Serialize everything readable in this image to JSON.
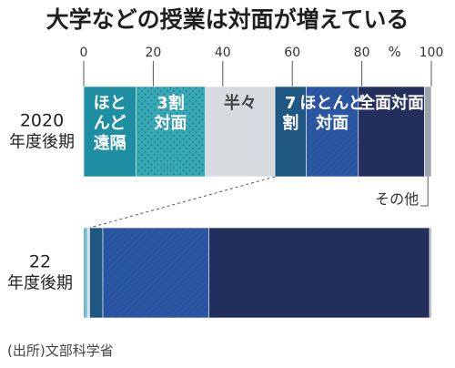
{
  "chart_data": {
    "type": "bar",
    "stacked": true,
    "orientation": "horizontal",
    "title": "大学などの授業は対面が増えている",
    "unit": "%",
    "xlim": [
      0,
      100
    ],
    "xticks": [
      "0",
      "20",
      "40",
      "60",
      "80",
      "100"
    ],
    "categories": [
      [
        "2020",
        "年度後期"
      ],
      [
        "22",
        "年度後期"
      ]
    ],
    "series": [
      {
        "name": "ほとんど遠隔",
        "color": "#1e8ea3",
        "values": [
          15,
          0.5
        ]
      },
      {
        "name": "3割対面",
        "color": "#37a8b5",
        "pattern": "dots",
        "values": [
          20,
          0.5
        ]
      },
      {
        "name": "半々",
        "color": "#d7dadf",
        "values": [
          20,
          0.7
        ]
      },
      {
        "name": "7割",
        "color": "#1f5783",
        "values": [
          9,
          3.8
        ]
      },
      {
        "name": "ほとんど対面",
        "color": "#2a56a6",
        "pattern": "hatch",
        "values": [
          15,
          30.5
        ]
      },
      {
        "name": "全面対面",
        "color": "#222f5c",
        "values": [
          19,
          63.5
        ]
      },
      {
        "name": "その他",
        "color": "#9ea4ad",
        "values": [
          2,
          0.5
        ]
      }
    ],
    "labels_2020": [
      [
        "ほと",
        "んど",
        "遠隔"
      ],
      [
        "3割",
        "対面"
      ],
      [
        "半々"
      ],
      [
        "7",
        "割"
      ],
      [
        "ほとんど",
        "対面"
      ],
      [
        "全面対面"
      ]
    ],
    "annotation": "その他",
    "source": "(出所)文部科学省"
  }
}
